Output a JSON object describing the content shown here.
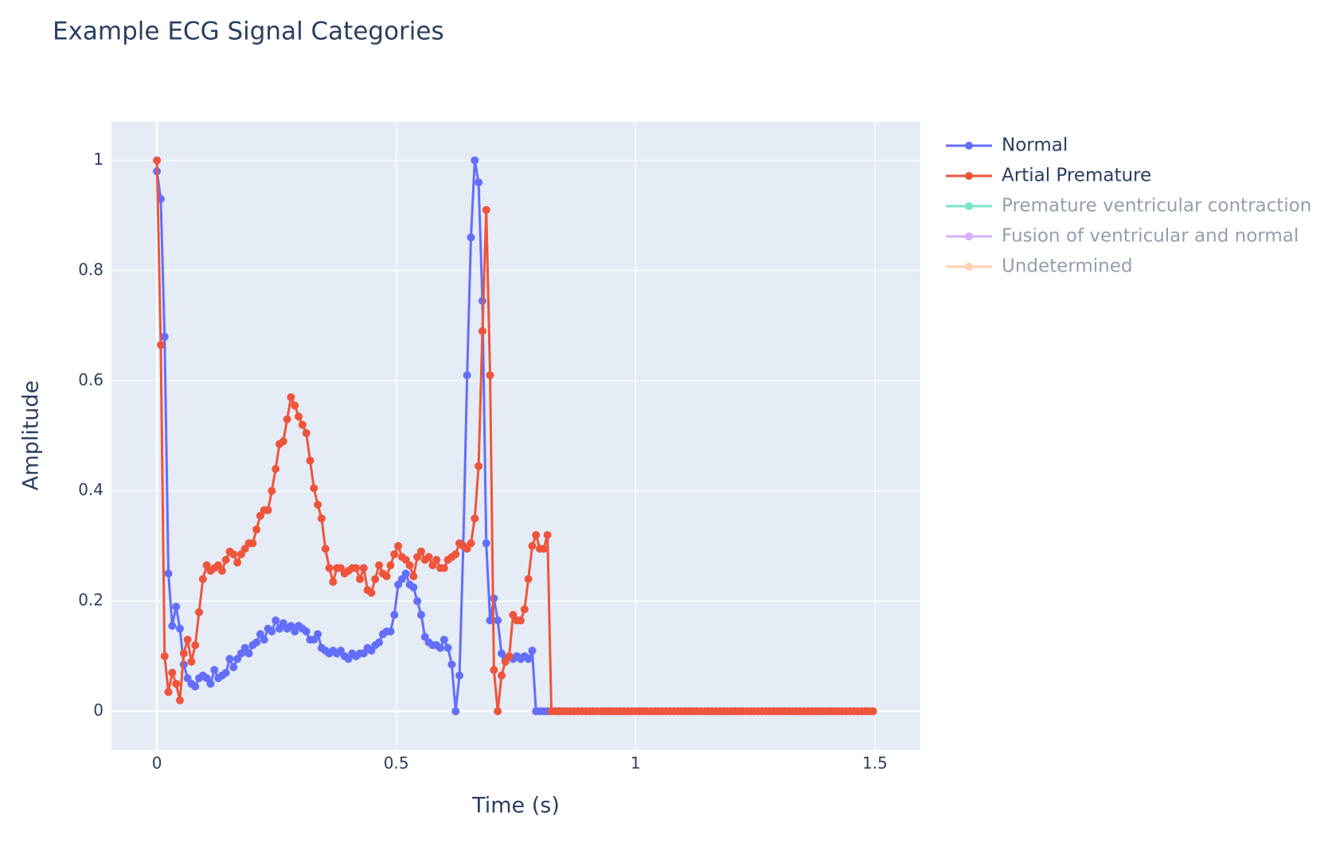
{
  "chart_data": {
    "type": "line",
    "title": "Example ECG Signal Categories",
    "x_label": "Time (s)",
    "y_label": "Amplitude",
    "x": [
      0,
      0.008,
      0.016,
      0.024,
      0.032,
      0.04,
      0.048,
      0.056,
      0.064,
      0.072,
      0.08,
      0.088,
      0.096,
      0.104,
      0.112,
      0.12,
      0.128,
      0.136,
      0.144,
      0.152,
      0.16,
      0.168,
      0.176,
      0.184,
      0.192,
      0.2,
      0.208,
      0.216,
      0.224,
      0.232,
      0.24,
      0.248,
      0.256,
      0.264,
      0.272,
      0.28,
      0.288,
      0.296,
      0.304,
      0.312,
      0.32,
      0.328,
      0.336,
      0.344,
      0.352,
      0.36,
      0.368,
      0.376,
      0.384,
      0.392,
      0.4,
      0.408,
      0.416,
      0.424,
      0.432,
      0.44,
      0.448,
      0.456,
      0.464,
      0.472,
      0.48,
      0.488,
      0.496,
      0.504,
      0.512,
      0.52,
      0.528,
      0.536,
      0.544,
      0.552,
      0.56,
      0.568,
      0.576,
      0.584,
      0.592,
      0.6,
      0.608,
      0.616,
      0.624,
      0.632,
      0.64,
      0.648,
      0.656,
      0.664,
      0.672,
      0.68,
      0.688,
      0.696,
      0.704,
      0.712,
      0.72,
      0.728,
      0.736,
      0.744,
      0.752,
      0.76,
      0.768,
      0.776,
      0.784,
      0.792,
      0.8,
      0.808,
      0.816,
      0.824,
      0.832,
      0.84,
      0.848,
      0.856,
      0.864,
      0.872,
      0.88,
      0.888,
      0.896,
      0.904,
      0.912,
      0.92,
      0.928,
      0.936,
      0.944,
      0.952,
      0.96,
      0.968,
      0.976,
      0.984,
      0.992,
      1,
      1.008,
      1.016,
      1.024,
      1.032,
      1.04,
      1.048,
      1.056,
      1.064,
      1.072,
      1.08,
      1.088,
      1.096,
      1.104,
      1.112,
      1.12,
      1.128,
      1.136,
      1.144,
      1.152,
      1.16,
      1.168,
      1.176,
      1.184,
      1.192,
      1.2,
      1.208,
      1.216,
      1.224,
      1.232,
      1.24,
      1.248,
      1.256,
      1.264,
      1.272,
      1.28,
      1.288,
      1.296,
      1.304,
      1.312,
      1.32,
      1.328,
      1.336,
      1.344,
      1.352,
      1.36,
      1.368,
      1.376,
      1.384,
      1.392,
      1.4,
      1.408,
      1.416,
      1.424,
      1.432,
      1.44,
      1.448,
      1.456,
      1.464,
      1.472,
      1.48,
      1.488,
      1.496
    ],
    "series": [
      {
        "name": "Normal",
        "color": "#636efa",
        "visible": true,
        "values": [
          0.98,
          0.93,
          0.68,
          0.25,
          0.155,
          0.19,
          0.15,
          0.085,
          0.06,
          0.05,
          0.045,
          0.06,
          0.065,
          0.06,
          0.05,
          0.075,
          0.06,
          0.065,
          0.07,
          0.095,
          0.08,
          0.095,
          0.105,
          0.115,
          0.105,
          0.12,
          0.125,
          0.14,
          0.13,
          0.15,
          0.145,
          0.165,
          0.15,
          0.16,
          0.15,
          0.155,
          0.145,
          0.155,
          0.15,
          0.145,
          0.13,
          0.13,
          0.14,
          0.115,
          0.11,
          0.105,
          0.11,
          0.105,
          0.11,
          0.1,
          0.095,
          0.105,
          0.1,
          0.105,
          0.105,
          0.115,
          0.11,
          0.12,
          0.125,
          0.14,
          0.145,
          0.145,
          0.175,
          0.23,
          0.24,
          0.25,
          0.23,
          0.225,
          0.2,
          0.175,
          0.135,
          0.125,
          0.12,
          0.12,
          0.115,
          0.13,
          0.115,
          0.085,
          0,
          0.065,
          0.3,
          0.61,
          0.86,
          1,
          0.96,
          0.745,
          0.305,
          0.165,
          0.205,
          0.165,
          0.105,
          0.095,
          0.1,
          0.095,
          0.1,
          0.095,
          0.1,
          0.095,
          0.11,
          0,
          0,
          0,
          0,
          0,
          0,
          0,
          0,
          0,
          0,
          0,
          0,
          0,
          0,
          0,
          0,
          0,
          0,
          0,
          0,
          0,
          0,
          0,
          0,
          0,
          0,
          0,
          0,
          0,
          0,
          0,
          0,
          0,
          0,
          0,
          0,
          0,
          0,
          0,
          0,
          0,
          0,
          0,
          0,
          0,
          0,
          0,
          0,
          0,
          0,
          0,
          0,
          0,
          0,
          0,
          0,
          0,
          0,
          0,
          0,
          0,
          0,
          0,
          0,
          0,
          0,
          0,
          0,
          0,
          0,
          0,
          0,
          0,
          0,
          0,
          0,
          0,
          0,
          0,
          0,
          0,
          0,
          0,
          0,
          0,
          0,
          0,
          0,
          0
        ]
      },
      {
        "name": "Artial Premature",
        "color": "#EF553B",
        "visible": true,
        "values": [
          1,
          0.665,
          0.1,
          0.035,
          0.07,
          0.05,
          0.02,
          0.105,
          0.13,
          0.09,
          0.12,
          0.18,
          0.24,
          0.265,
          0.255,
          0.26,
          0.265,
          0.255,
          0.275,
          0.29,
          0.285,
          0.27,
          0.285,
          0.295,
          0.305,
          0.305,
          0.33,
          0.355,
          0.365,
          0.365,
          0.4,
          0.44,
          0.485,
          0.49,
          0.53,
          0.57,
          0.555,
          0.535,
          0.52,
          0.505,
          0.455,
          0.405,
          0.375,
          0.35,
          0.295,
          0.26,
          0.235,
          0.26,
          0.26,
          0.25,
          0.255,
          0.26,
          0.26,
          0.24,
          0.26,
          0.22,
          0.215,
          0.24,
          0.265,
          0.25,
          0.245,
          0.265,
          0.285,
          0.3,
          0.28,
          0.275,
          0.265,
          0.245,
          0.28,
          0.29,
          0.275,
          0.28,
          0.265,
          0.275,
          0.26,
          0.26,
          0.275,
          0.28,
          0.285,
          0.305,
          0.3,
          0.295,
          0.305,
          0.35,
          0.445,
          0.69,
          0.91,
          0.61,
          0.075,
          0,
          0.065,
          0.09,
          0.1,
          0.175,
          0.165,
          0.165,
          0.185,
          0.24,
          0.3,
          0.32,
          0.295,
          0.295,
          0.32,
          0,
          0,
          0,
          0,
          0,
          0,
          0,
          0,
          0,
          0,
          0,
          0,
          0,
          0,
          0,
          0,
          0,
          0,
          0,
          0,
          0,
          0,
          0,
          0,
          0,
          0,
          0,
          0,
          0,
          0,
          0,
          0,
          0,
          0,
          0,
          0,
          0,
          0,
          0,
          0,
          0,
          0,
          0,
          0,
          0,
          0,
          0,
          0,
          0,
          0,
          0,
          0,
          0,
          0,
          0,
          0,
          0,
          0,
          0,
          0,
          0,
          0,
          0,
          0,
          0,
          0,
          0,
          0,
          0,
          0,
          0,
          0,
          0,
          0,
          0,
          0,
          0,
          0,
          0,
          0,
          0,
          0,
          0,
          0,
          0
        ]
      },
      {
        "name": "Premature ventricular contraction",
        "color": "#00cc96",
        "visible": false
      },
      {
        "name": "Fusion of ventricular and normal",
        "color": "#ab63fa",
        "visible": false
      },
      {
        "name": "Undetermined",
        "color": "#FFA15A",
        "visible": false
      }
    ],
    "xlim": [
      -0.095,
      1.595
    ],
    "ylim": [
      -0.07,
      1.07
    ],
    "xticks": [
      0,
      0.5,
      1,
      1.5
    ],
    "yticks": [
      0,
      0.2,
      0.4,
      0.6,
      0.8,
      1
    ],
    "grid": true,
    "legend": "right"
  }
}
